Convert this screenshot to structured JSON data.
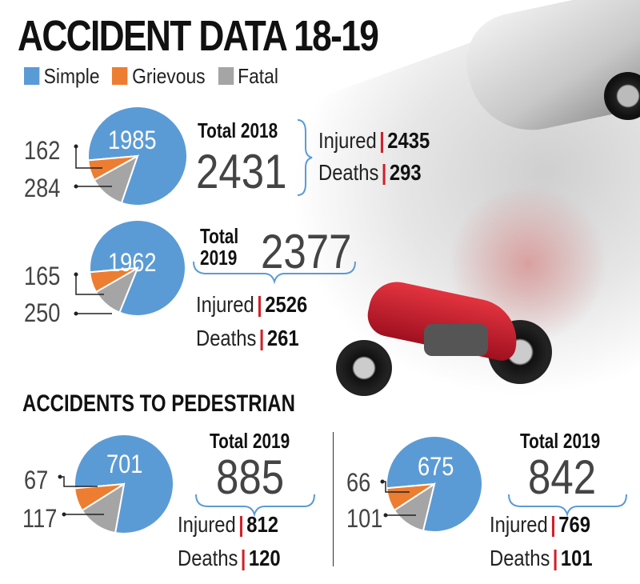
{
  "title": "ACCIDENT DATA 18-19",
  "legend": [
    {
      "label": "Simple",
      "color": "#5b9bd5"
    },
    {
      "label": "Grievous",
      "color": "#ed7d31"
    },
    {
      "label": "Fatal",
      "color": "#a5a5a5"
    }
  ],
  "pedestrian_heading": "ACCIDENTS TO PEDESTRIAN",
  "injured_label": "Injured",
  "deaths_label": "Deaths",
  "chart_data": [
    {
      "type": "pie",
      "title": "Total 2018",
      "total": "2431",
      "categories": [
        "Simple",
        "Grievous",
        "Fatal"
      ],
      "values": [
        1985,
        162,
        284
      ],
      "injured": "2435",
      "deaths": "293"
    },
    {
      "type": "pie",
      "title": "Total 2019",
      "total": "2377",
      "categories": [
        "Simple",
        "Grievous",
        "Fatal"
      ],
      "values": [
        1962,
        165,
        250
      ],
      "injured": "2526",
      "deaths": "261"
    },
    {
      "type": "pie",
      "title": "Total 2019",
      "total": "885",
      "categories": [
        "Simple",
        "Grievous",
        "Fatal"
      ],
      "values": [
        701,
        67,
        117
      ],
      "injured": "812",
      "deaths": "120"
    },
    {
      "type": "pie",
      "title": "Total 2019",
      "total": "842",
      "categories": [
        "Simple",
        "Grievous",
        "Fatal"
      ],
      "values": [
        675,
        66,
        101
      ],
      "injured": "769",
      "deaths": "101"
    }
  ]
}
